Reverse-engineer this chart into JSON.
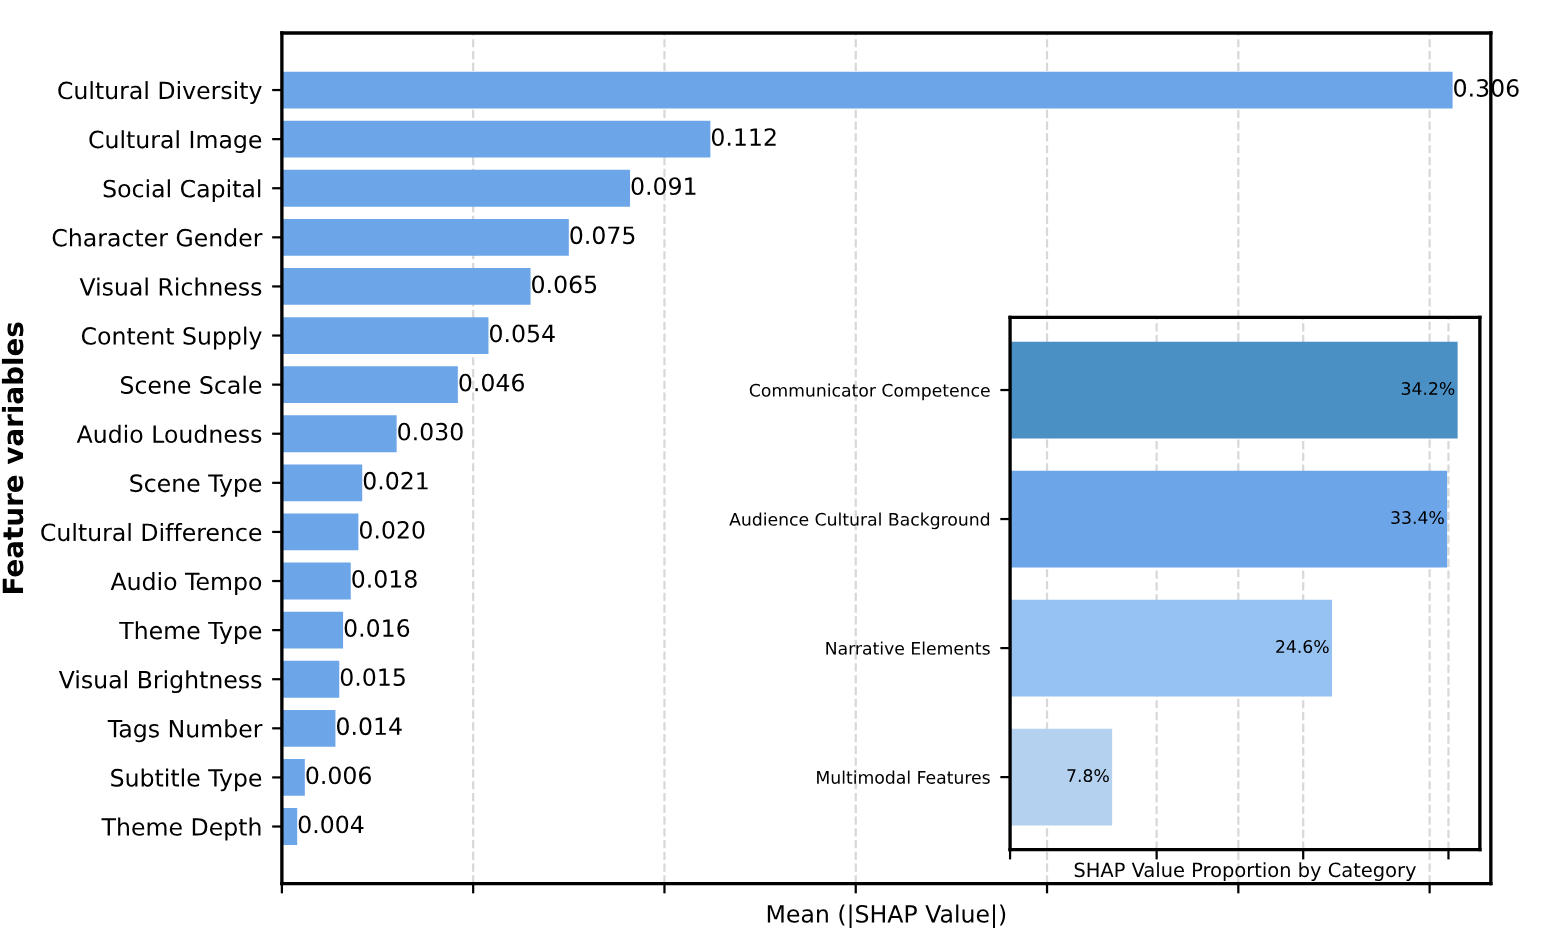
{
  "chart_data": [
    {
      "type": "bar",
      "orientation": "horizontal",
      "ylabel": "Feature variables",
      "xlabel": "Mean (|SHAP Value|)",
      "categories": [
        "Cultural Diversity",
        "Cultural Image",
        "Social Capital",
        "Character Gender",
        "Visual Richness",
        "Content Supply",
        "Scene Scale",
        "Audio Loudness",
        "Scene Type",
        "Cultural Difference",
        "Audio Tempo",
        "Theme Type",
        "Visual Brightness",
        "Tags Number",
        "Subtitle Type",
        "Theme Depth"
      ],
      "values": [
        0.306,
        0.112,
        0.091,
        0.075,
        0.065,
        0.054,
        0.046,
        0.03,
        0.021,
        0.02,
        0.018,
        0.016,
        0.015,
        0.014,
        0.006,
        0.004
      ],
      "value_labels": [
        "0.306",
        "0.112",
        "0.091",
        "0.075",
        "0.065",
        "0.054",
        "0.046",
        "0.030",
        "0.021",
        "0.020",
        "0.018",
        "0.016",
        "0.015",
        "0.014",
        "0.006",
        "0.004"
      ],
      "color": "#6ca6e8",
      "xlim": [
        0,
        0.316
      ],
      "xticks": [
        {
          "value": 0,
          "label": null
        },
        {
          "value": 0.05,
          "label": null
        },
        {
          "value": 0.1,
          "label": null
        },
        {
          "value": 0.15,
          "label": null
        },
        {
          "value": 0.2,
          "label": null
        },
        {
          "value": 0.25,
          "label": null
        },
        {
          "value": 0.3,
          "label": null
        }
      ],
      "grid": "x",
      "tick_labels": "y"
    },
    {
      "type": "bar",
      "orientation": "horizontal",
      "xlabel": "SHAP Value Proportion by Category",
      "categories": [
        "Communicator Competence",
        "Audience Cultural Background",
        "Narrative Elements",
        "Multimodal Features"
      ],
      "values": [
        34.2,
        33.4,
        24.6,
        7.8
      ],
      "value_labels": [
        "34.2%",
        "33.4%",
        "24.6%",
        "7.8%"
      ],
      "colors": [
        "#4a90c4",
        "#6ca6e8",
        "#96c2f2",
        "#b4d2f0"
      ],
      "xlim": [
        0,
        35.9
      ],
      "xticks": [
        {
          "value": 0,
          "label": null
        },
        {
          "value": 11.2,
          "label": null
        },
        {
          "value": 22.4,
          "label": null
        },
        {
          "value": 33.5,
          "label": null
        }
      ],
      "grid": "x",
      "tick_labels": "y"
    }
  ]
}
